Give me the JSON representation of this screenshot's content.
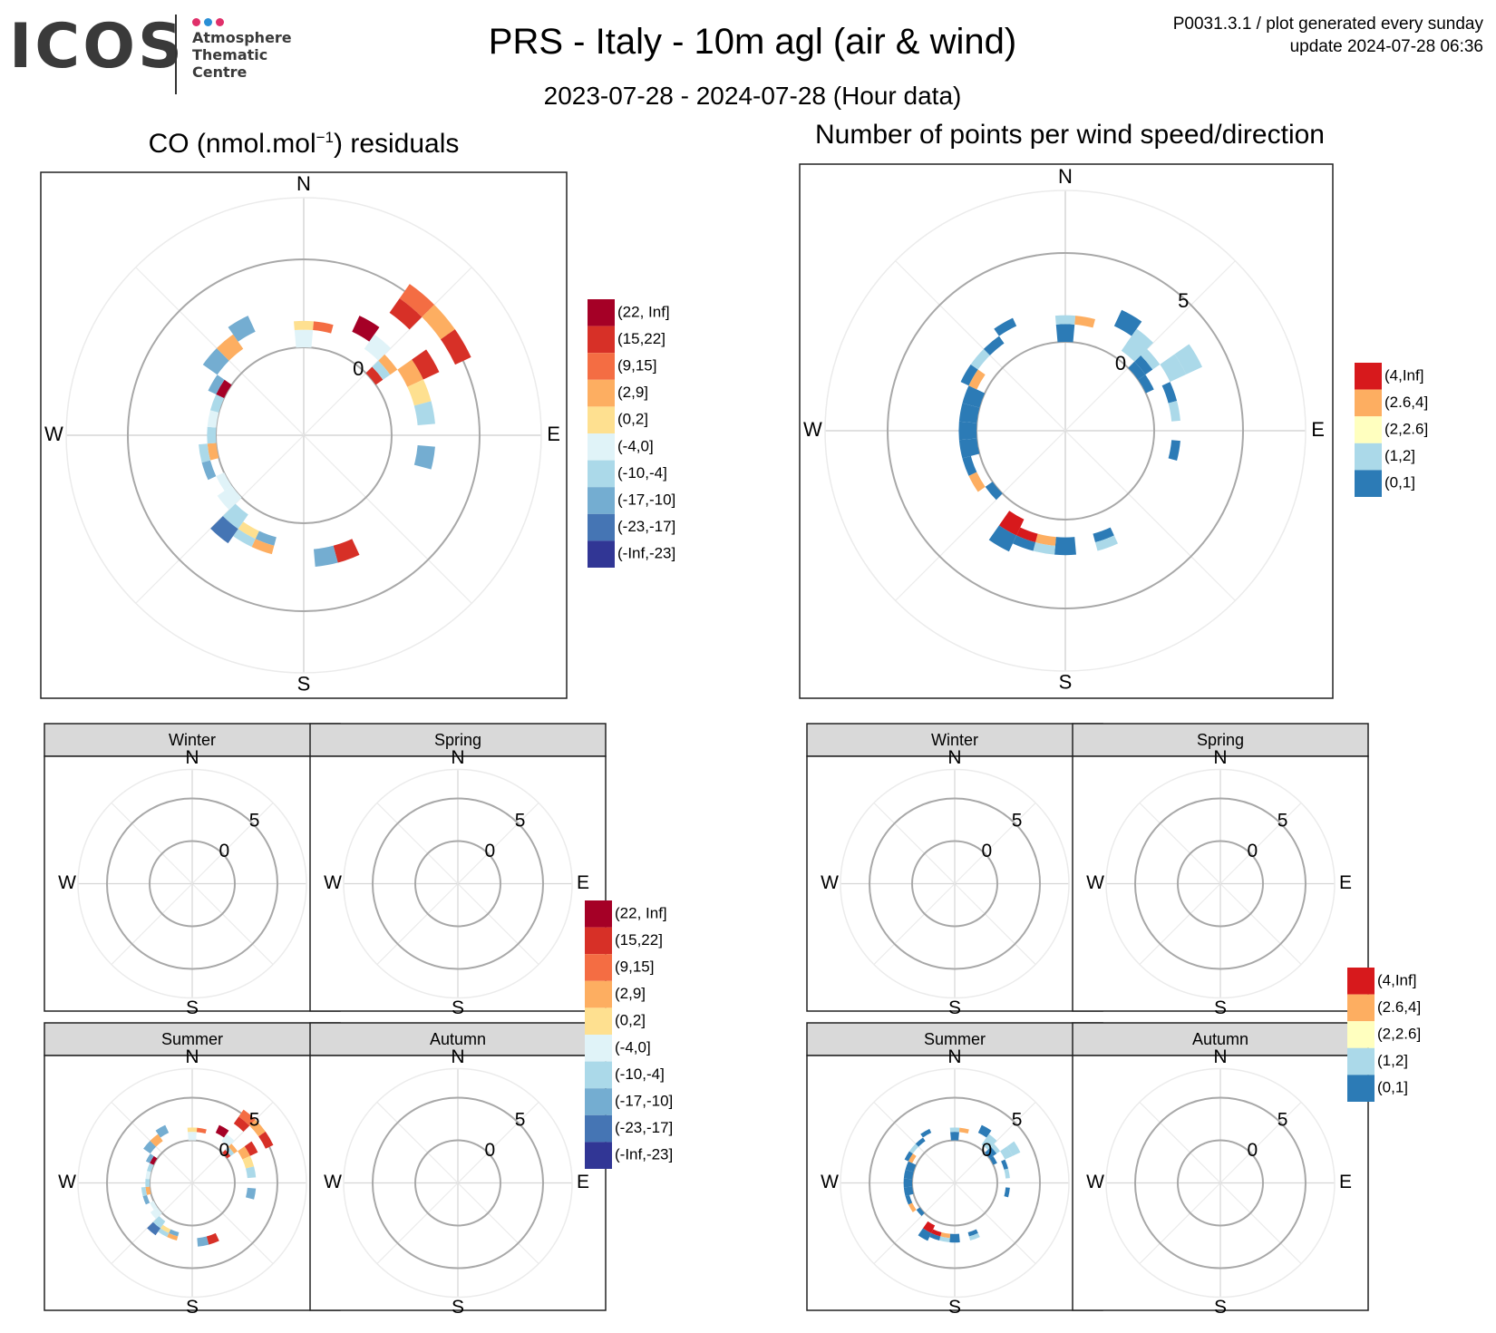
{
  "header": {
    "logo_text": "ICOS",
    "logo_sub": [
      "Atmosphere",
      "Thematic",
      "Centre"
    ],
    "logo_dot_colors": [
      "#e0306a",
      "#2a8fd6",
      "#e0306a"
    ],
    "title": "PRS - Italy - 10m agl (air & wind)",
    "subtitle": "2023-07-28 - 2024-07-28 (Hour data)",
    "plot_id": "P0031.3.1 / plot generated every sunday",
    "update": "update  2024-07-28 06:36"
  },
  "left_title": {
    "prefix": "CO (nmol.mol",
    "sup": "−1",
    "suffix": ") residuals"
  },
  "right_title": "Number of points per wind speed/direction",
  "compass": {
    "n": "N",
    "e": "E",
    "s": "S",
    "w": "W"
  },
  "ring_labels": [
    "0",
    "5"
  ],
  "seasons": [
    "Winter",
    "Spring",
    "Summer",
    "Autumn"
  ],
  "legend_residual": {
    "labels": [
      "(22, Inf]",
      "(15,22]",
      "(9,15]",
      "(2,9]",
      "(0,2]",
      "(-4,0]",
      "(-10,-4]",
      "(-17,-10]",
      "(-23,-17]",
      "(-Inf,-23]"
    ],
    "colors": [
      "#a50026",
      "#d73027",
      "#f46d43",
      "#fdae61",
      "#fee090",
      "#e0f3f8",
      "#abd9e9",
      "#74add1",
      "#4575b4",
      "#313695"
    ]
  },
  "legend_count": {
    "labels": [
      "(4,Inf]",
      "(2.6,4]",
      "(2,2.6]",
      "(1,2]",
      "(0,1]"
    ],
    "colors": [
      "#d7191c",
      "#fdae61",
      "#ffffbf",
      "#abd9e9",
      "#2c7bb6"
    ]
  },
  "chart_data": [
    {
      "type": "heatmap",
      "name": "residuals",
      "coords": "polar: direction in degrees (0 = N, clockwise), wind speed in m/s (0 at inner ring)",
      "cells": [
        {
          "dir": 0,
          "ws": [
            0,
            1
          ],
          "cls": 5
        },
        {
          "dir": 0,
          "ws": [
            1,
            1.5
          ],
          "cls": 4
        },
        {
          "dir": 10,
          "ws": [
            1,
            1.5
          ],
          "cls": 2
        },
        {
          "dir": 30,
          "ws": [
            1.5,
            2.5
          ],
          "cls": 0
        },
        {
          "dir": 40,
          "ws": [
            1,
            2
          ],
          "cls": 5
        },
        {
          "dir": 50,
          "ws": [
            0,
            0.5
          ],
          "cls": 1
        },
        {
          "dir": 50,
          "ws": [
            0.5,
            1
          ],
          "cls": 6
        },
        {
          "dir": 50,
          "ws": [
            1,
            1.5
          ],
          "cls": 3
        },
        {
          "dir": 60,
          "ws": [
            1.5,
            2.5
          ],
          "cls": 3
        },
        {
          "dir": 60,
          "ws": [
            2.5,
            3.5
          ],
          "cls": 1
        },
        {
          "dir": 40,
          "ws": [
            4.5,
            5.5
          ],
          "cls": 2
        },
        {
          "dir": 40,
          "ws": [
            3.5,
            4.5
          ],
          "cls": 1
        },
        {
          "dir": 50,
          "ws": [
            4.5,
            5.5
          ],
          "cls": 3
        },
        {
          "dir": 60,
          "ws": [
            4.5,
            5.5
          ],
          "cls": 1
        },
        {
          "dir": 70,
          "ws": [
            1.5,
            2.5
          ],
          "cls": 4
        },
        {
          "dir": 80,
          "ws": [
            1.5,
            2.5
          ],
          "cls": 6
        },
        {
          "dir": 100,
          "ws": [
            1.5,
            2.5
          ],
          "cls": 7
        },
        {
          "dir": 160,
          "ws": [
            1.5,
            2.5
          ],
          "cls": 1
        },
        {
          "dir": 170,
          "ws": [
            1.5,
            2.5
          ],
          "cls": 7
        },
        {
          "dir": 200,
          "ws": [
            1,
            1.5
          ],
          "cls": 7
        },
        {
          "dir": 200,
          "ws": [
            1.5,
            2
          ],
          "cls": 3
        },
        {
          "dir": 210,
          "ws": [
            1,
            1.5
          ],
          "cls": 4
        },
        {
          "dir": 210,
          "ws": [
            1.5,
            2
          ],
          "cls": 6
        },
        {
          "dir": 220,
          "ws": [
            0.5,
            1.5
          ],
          "cls": 6
        },
        {
          "dir": 220,
          "ws": [
            1.5,
            2.5
          ],
          "cls": 8
        },
        {
          "dir": 230,
          "ws": [
            0,
            1
          ],
          "cls": 5
        },
        {
          "dir": 240,
          "ws": [
            0,
            0.5
          ],
          "cls": 5
        },
        {
          "dir": 250,
          "ws": [
            0.5,
            1
          ],
          "cls": 7
        },
        {
          "dir": 260,
          "ws": [
            0,
            0.5
          ],
          "cls": 3
        },
        {
          "dir": 260,
          "ws": [
            0.5,
            1
          ],
          "cls": 6
        },
        {
          "dir": 270,
          "ws": [
            0,
            0.5
          ],
          "cls": 6
        },
        {
          "dir": 280,
          "ws": [
            0,
            0.5
          ],
          "cls": 5
        },
        {
          "dir": 290,
          "ws": [
            0,
            0.5
          ],
          "cls": 6
        },
        {
          "dir": 300,
          "ws": [
            0,
            0.5
          ],
          "cls": 0
        },
        {
          "dir": 300,
          "ws": [
            0.5,
            1
          ],
          "cls": 7
        },
        {
          "dir": 310,
          "ws": [
            1,
            2
          ],
          "cls": 7
        },
        {
          "dir": 320,
          "ws": [
            1,
            2
          ],
          "cls": 3
        },
        {
          "dir": 330,
          "ws": [
            1.5,
            2.5
          ],
          "cls": 7
        }
      ]
    },
    {
      "type": "heatmap",
      "name": "counts",
      "coords": "polar: direction in degrees (0 = N, clockwise), wind speed in m/s (0 at inner ring)",
      "cells": [
        {
          "dir": 0,
          "ws": [
            0,
            1
          ],
          "cls": 4
        },
        {
          "dir": 0,
          "ws": [
            1,
            1.5
          ],
          "cls": 3
        },
        {
          "dir": 10,
          "ws": [
            1,
            1.5
          ],
          "cls": 1
        },
        {
          "dir": 30,
          "ws": [
            1.5,
            2.5
          ],
          "cls": 4
        },
        {
          "dir": 40,
          "ws": [
            1,
            2
          ],
          "cls": 3
        },
        {
          "dir": 50,
          "ws": [
            0,
            0.5
          ],
          "cls": 4
        },
        {
          "dir": 50,
          "ws": [
            0.5,
            1
          ],
          "cls": 4
        },
        {
          "dir": 50,
          "ws": [
            1,
            1.5
          ],
          "cls": 3
        },
        {
          "dir": 60,
          "ws": [
            1.5,
            2.5
          ],
          "cls": 3
        },
        {
          "dir": 60,
          "ws": [
            2.5,
            3.5
          ],
          "cls": 3
        },
        {
          "dir": 40,
          "ws": [
            0.5,
            1.5
          ],
          "cls": 3
        },
        {
          "dir": 60,
          "ws": [
            0,
            0.5
          ],
          "cls": 4
        },
        {
          "dir": 70,
          "ws": [
            1,
            1.5
          ],
          "cls": 4
        },
        {
          "dir": 80,
          "ws": [
            1,
            1.5
          ],
          "cls": 3
        },
        {
          "dir": 100,
          "ws": [
            1,
            1.5
          ],
          "cls": 4
        },
        {
          "dir": 160,
          "ws": [
            1,
            1.5
          ],
          "cls": 4
        },
        {
          "dir": 160,
          "ws": [
            1.5,
            2
          ],
          "cls": 3
        },
        {
          "dir": 180,
          "ws": [
            1,
            2
          ],
          "cls": 4
        },
        {
          "dir": 190,
          "ws": [
            1,
            1.5
          ],
          "cls": 1
        },
        {
          "dir": 190,
          "ws": [
            1.5,
            2
          ],
          "cls": 3
        },
        {
          "dir": 200,
          "ws": [
            1,
            1.5
          ],
          "cls": 0
        },
        {
          "dir": 200,
          "ws": [
            1.5,
            2
          ],
          "cls": 4
        },
        {
          "dir": 210,
          "ws": [
            0.5,
            1.5
          ],
          "cls": 0
        },
        {
          "dir": 210,
          "ws": [
            1.5,
            2.5
          ],
          "cls": 4
        },
        {
          "dir": 230,
          "ws": [
            0,
            0.5
          ],
          "cls": 4
        },
        {
          "dir": 240,
          "ws": [
            0.5,
            1
          ],
          "cls": 1
        },
        {
          "dir": 250,
          "ws": [
            0.5,
            1
          ],
          "cls": 4
        },
        {
          "dir": 260,
          "ws": [
            0,
            1
          ],
          "cls": 4
        },
        {
          "dir": 270,
          "ws": [
            0,
            1
          ],
          "cls": 4
        },
        {
          "dir": 280,
          "ws": [
            0,
            1
          ],
          "cls": 4
        },
        {
          "dir": 290,
          "ws": [
            0,
            1
          ],
          "cls": 4
        },
        {
          "dir": 300,
          "ws": [
            0.5,
            1
          ],
          "cls": 1
        },
        {
          "dir": 300,
          "ws": [
            1,
            1.5
          ],
          "cls": 4
        },
        {
          "dir": 310,
          "ws": [
            1,
            1.5
          ],
          "cls": 3
        },
        {
          "dir": 320,
          "ws": [
            1,
            1.5
          ],
          "cls": 4
        },
        {
          "dir": 330,
          "ws": [
            1.5,
            2
          ],
          "cls": 4
        }
      ]
    }
  ]
}
